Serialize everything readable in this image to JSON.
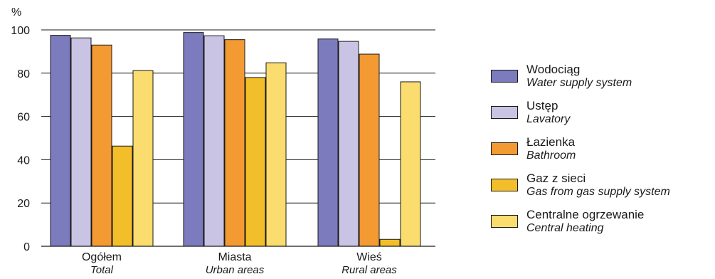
{
  "chart_data": {
    "type": "bar",
    "ylabel": "%",
    "ylim": [
      0,
      100
    ],
    "yticks": [
      0,
      20,
      40,
      60,
      80,
      100
    ],
    "grid": true,
    "legend_position": "right",
    "categories": [
      {
        "pl": "Ogółem",
        "en": "Total"
      },
      {
        "pl": "Miasta",
        "en": "Urban areas"
      },
      {
        "pl": "Wieś",
        "en": "Rural areas"
      }
    ],
    "series": [
      {
        "name": "Wodociąg",
        "name_en": "Water supply system",
        "color": "#7b7bbd",
        "values": [
          97.5,
          98.8,
          95.8
        ]
      },
      {
        "name": "Ustęp",
        "name_en": "Lavatory",
        "color": "#c9c4e3",
        "values": [
          96.3,
          97.3,
          94.7
        ]
      },
      {
        "name": "Łazienka",
        "name_en": "Bathroom",
        "color": "#f39a33",
        "values": [
          93.0,
          95.5,
          88.8
        ]
      },
      {
        "name": "Gaz z sieci",
        "name_en": "Gas from gas supply system",
        "color": "#f2bf2a",
        "values": [
          46.3,
          78.0,
          3.2
        ]
      },
      {
        "name": "Centralne ogrzewanie",
        "name_en": "Central heating",
        "color": "#fbdc6e",
        "values": [
          81.2,
          84.8,
          76.0
        ]
      }
    ]
  }
}
